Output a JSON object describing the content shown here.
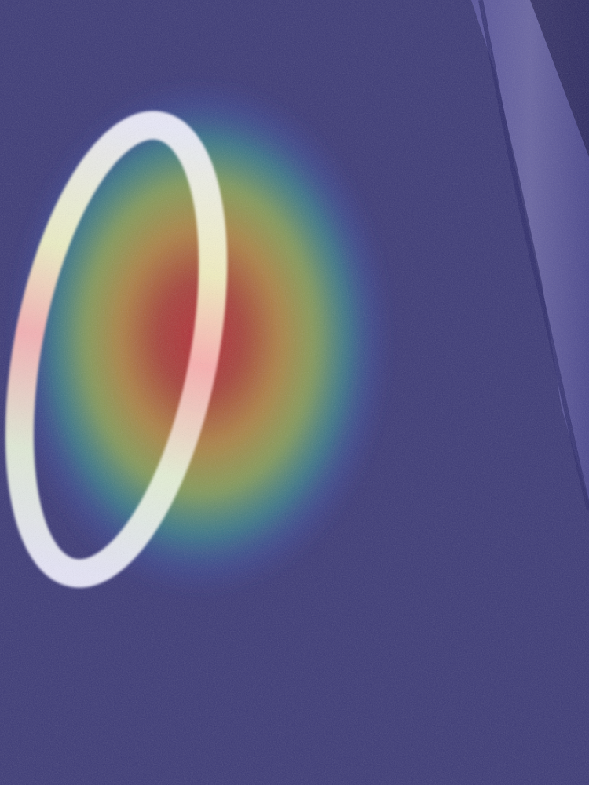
{
  "image": {
    "subject": "painted-ring-on-asphalt",
    "overlay": "activation-heatmap",
    "colors": {
      "asphalt_base": "#3f3c7a",
      "asphalt_dark": "#2c2a66",
      "curb_light": "#6e6aa8",
      "curb_shadow": "#1f1d4e",
      "paint": "#f2f0ff",
      "heat_peak": "#d0302a",
      "heat_high": "#e0a23a",
      "heat_mid": "#b9d24a",
      "heat_low": "#35b59c",
      "heat_floor": "#3f4fb8"
    }
  }
}
